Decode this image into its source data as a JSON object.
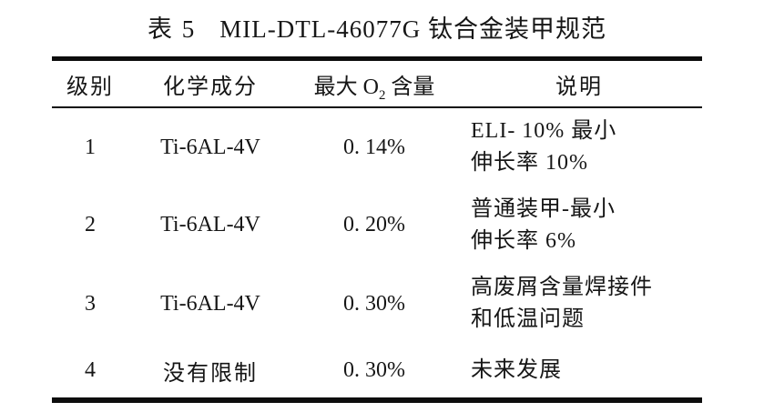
{
  "page": {
    "background": "#ffffff",
    "text_color": "#161616",
    "rule_color": "#0d0d0d"
  },
  "table": {
    "title": {
      "tag": "表 5",
      "text": "MIL-DTL-46077G 钛合金装甲规范"
    },
    "columns": [
      {
        "label": "级别"
      },
      {
        "label": "化学成分"
      },
      {
        "label_pre": "最大 O",
        "label_sub": "2",
        "label_post": " 含量"
      },
      {
        "label": "说明"
      }
    ],
    "rows": [
      {
        "grade": "1",
        "composition": "Ti-6AL-4V",
        "max_o2": "0. 14%",
        "description_lines": [
          "ELI- 10% 最小",
          "伸长率 10%"
        ]
      },
      {
        "grade": "2",
        "composition": "Ti-6AL-4V",
        "max_o2": "0. 20%",
        "description_lines": [
          "普通装甲-最小",
          "伸长率 6%"
        ]
      },
      {
        "grade": "3",
        "composition": "Ti-6AL-4V",
        "max_o2": "0. 30%",
        "description_lines": [
          "高废屑含量焊接件",
          "和低温问题"
        ]
      },
      {
        "grade": "4",
        "composition": "没有限制",
        "max_o2": "0. 30%",
        "description_lines": [
          "未来发展"
        ]
      }
    ]
  }
}
